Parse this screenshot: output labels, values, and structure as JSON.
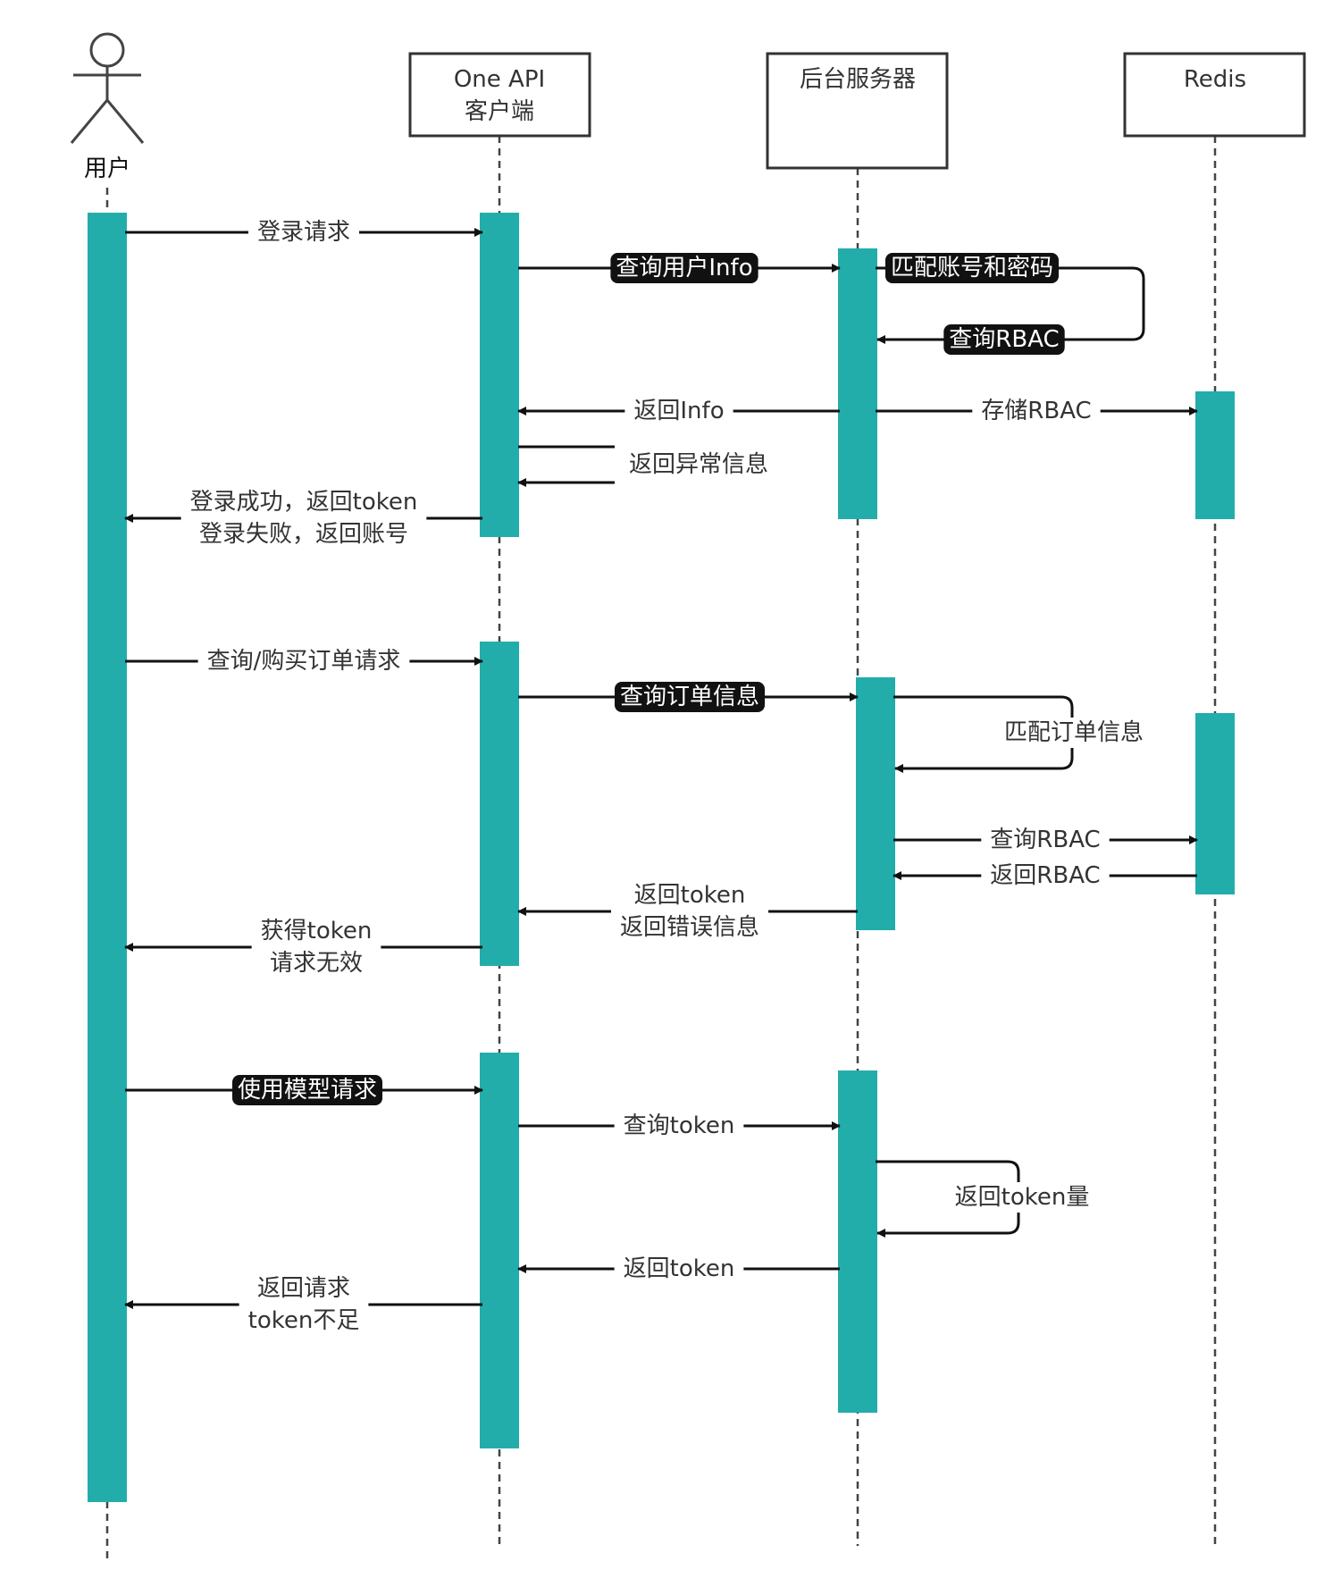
{
  "colors": {
    "activation": "#22ADAB",
    "line": "#111111",
    "lifeline": "#444444",
    "box_border": "#333333",
    "highlight_bg": "#111111",
    "highlight_text": "#ffffff",
    "text": "#333333"
  },
  "actor": {
    "label": "用户",
    "icon": "stick-figure-icon"
  },
  "participants": [
    {
      "lines": [
        "One API",
        "客户端"
      ]
    },
    {
      "lines": [
        "后台服务器"
      ]
    },
    {
      "lines": [
        "Redis"
      ]
    }
  ],
  "messages": [
    {
      "lines": [
        "登录请求"
      ],
      "highlight": false
    },
    {
      "lines": [
        "查询用户Info"
      ],
      "highlight": true
    },
    {
      "lines": [
        "匹配账号和密码"
      ],
      "highlight": true
    },
    {
      "lines": [
        "查询RBAC"
      ],
      "highlight": true
    },
    {
      "lines": [
        "返回Info"
      ],
      "highlight": false
    },
    {
      "lines": [
        "存储RBAC"
      ],
      "highlight": false
    },
    {
      "lines": [
        "返回异常信息"
      ],
      "highlight": false
    },
    {
      "lines": [
        "登录成功，返回token",
        "登录失败，返回账号"
      ],
      "highlight": false
    },
    {
      "lines": [
        "查询/购买订单请求"
      ],
      "highlight": false
    },
    {
      "lines": [
        "查询订单信息"
      ],
      "highlight": true
    },
    {
      "lines": [
        "匹配订单信息"
      ],
      "highlight": false
    },
    {
      "lines": [
        "查询RBAC"
      ],
      "highlight": false
    },
    {
      "lines": [
        "返回RBAC"
      ],
      "highlight": false
    },
    {
      "lines": [
        "返回token",
        "返回错误信息"
      ],
      "highlight": false
    },
    {
      "lines": [
        "获得token",
        "请求无效"
      ],
      "highlight": false
    },
    {
      "lines": [
        "使用模型请求"
      ],
      "highlight": true
    },
    {
      "lines": [
        "查询token"
      ],
      "highlight": false
    },
    {
      "lines": [
        "返回token量"
      ],
      "highlight": false
    },
    {
      "lines": [
        "返回token"
      ],
      "highlight": false
    },
    {
      "lines": [
        "返回请求",
        "token不足"
      ],
      "highlight": false
    }
  ]
}
